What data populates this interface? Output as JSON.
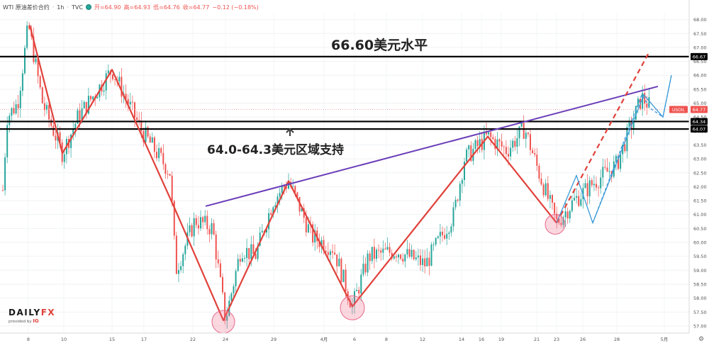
{
  "header": {
    "symbol": "WTI 原油差价合约",
    "interval": "1h",
    "source": "TVC",
    "open": "开=64.90",
    "high": "高=64.93",
    "low": "低=64.76",
    "close": "收=64.77",
    "change": "−0.12 (−0.18%)"
  },
  "logo": {
    "brand_a": "DAILY",
    "brand_b": "FX",
    "provided_by": "provided by",
    "ig": "IG"
  },
  "chart_data": {
    "type": "candlestick",
    "instrument": "USOIL",
    "ylim": [
      56.7,
      68.3
    ],
    "y_ticks": [
      57.0,
      57.5,
      58.0,
      58.5,
      59.0,
      59.5,
      60.0,
      60.5,
      61.0,
      61.5,
      62.0,
      62.5,
      63.0,
      63.5,
      64.0,
      64.5,
      65.0,
      65.5,
      66.0,
      66.5,
      67.0,
      67.5,
      68.0
    ],
    "x_ticks": [
      "8",
      "10",
      "15",
      "17",
      "22",
      "24",
      "29",
      "4月",
      "6",
      "8",
      "12",
      "14",
      "16",
      "19",
      "21",
      "23",
      "26",
      "28",
      "5月"
    ],
    "price_badges": [
      {
        "label": "USOIL",
        "value": "64.77",
        "price": 64.77,
        "color": "#ef5350"
      },
      {
        "label": "",
        "value": "66.67",
        "price": 66.67,
        "color": "#000000"
      },
      {
        "label": "",
        "value": "64.34",
        "price": 64.34,
        "color": "#000000"
      },
      {
        "label": "",
        "value": "64.07",
        "price": 64.07,
        "color": "#000000"
      }
    ],
    "horizontal_lines": [
      66.67,
      64.34,
      64.07
    ],
    "annotations": [
      {
        "text": "66.60美元水平"
      },
      {
        "text": "64.0-64.3美元区域支持"
      }
    ],
    "pattern_price_path": [
      67.8,
      63.2,
      66.2,
      61.3,
      57.2,
      62.2,
      57.7,
      63.8,
      60.7
    ],
    "trendline": {
      "from": 61.3,
      "to": 65.6,
      "color": "#6a3db8"
    },
    "projection_color": "#e0413a",
    "forecast_color": "#3a9ad9",
    "highlight_lows": [
      57.2,
      57.7,
      60.7
    ],
    "colors": {
      "up": "#26a69a",
      "down": "#ef5350",
      "pattern": "#e0413a"
    }
  }
}
